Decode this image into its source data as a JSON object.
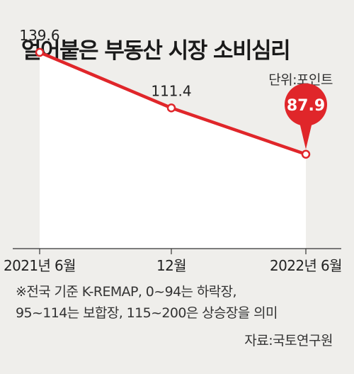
{
  "title": "얼어붙은 부동산 시장 소비심리",
  "unit": "단위:포인트",
  "note": "※전국 기준 K-REMAP, 0~94는 하락장,\n95~114는 보합장, 115~200은 상승장을 의미",
  "source": "자료:국토연구원",
  "colors": {
    "line": "#e0262a",
    "area": "#ffffff",
    "highlight": "#e0262a",
    "background": "#efeeeb"
  },
  "chart_data": {
    "type": "area",
    "categories": [
      "2021년 6월",
      "12월",
      "2022년 6월"
    ],
    "values": [
      139.6,
      111.4,
      87.9
    ],
    "data_labels": [
      "139.6",
      "111.4",
      "87.9"
    ],
    "highlight_index": 2,
    "ylim": [
      40,
      150
    ],
    "grid": false,
    "title": "얼어붙은 부동산 시장 소비심리",
    "xlabel": "",
    "ylabel": ""
  }
}
